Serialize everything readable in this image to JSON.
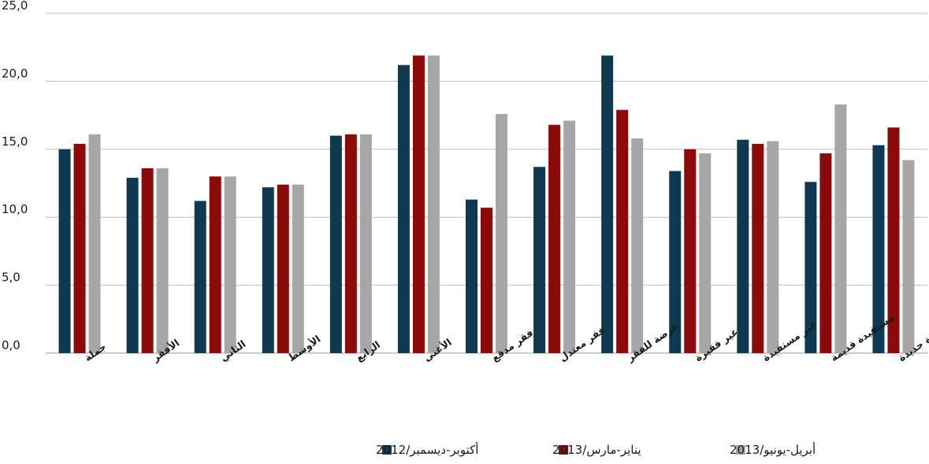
{
  "chart_data": {
    "type": "bar",
    "ylim": [
      0,
      25
    ],
    "yticks": [
      "0,0",
      "5,0",
      "10,0",
      "15,0",
      "20,0",
      "25,0"
    ],
    "grid": true,
    "legend_position": "bottom",
    "categories": [
      "جملة",
      "الأفقر",
      "الثاني",
      "الأوسط",
      "الرابع",
      "الأغنى",
      "فقر مدقع",
      "فقر معتدل",
      "عرضة للفقر",
      "غير فقيرة",
      "غير مستفيدة",
      "مستفيدة قديمة",
      "مستفيدة جديدة"
    ],
    "series": [
      {
        "name": "أكتوبر-ديسمبر/2012",
        "color": "#0d3a52",
        "values": [
          15.0,
          12.9,
          11.2,
          12.2,
          16.0,
          21.2,
          11.3,
          13.7,
          21.9,
          13.4,
          15.7,
          12.6,
          15.3
        ]
      },
      {
        "name": "يناير-مارس/2013",
        "color": "#8b0a0a",
        "values": [
          15.4,
          13.6,
          13.0,
          12.4,
          16.1,
          21.9,
          10.7,
          16.8,
          17.9,
          15.0,
          15.4,
          14.7,
          16.6
        ]
      },
      {
        "name": "أبريل-يونيو/2013",
        "color": "#a6a6a6",
        "values": [
          16.1,
          13.6,
          13.0,
          12.4,
          16.1,
          21.9,
          17.6,
          17.1,
          15.8,
          14.7,
          15.6,
          18.3,
          14.2
        ]
      }
    ]
  }
}
